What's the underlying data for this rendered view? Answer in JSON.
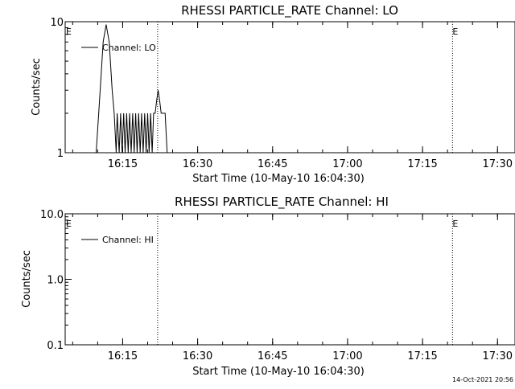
{
  "footer": {
    "timestamp": "14-Oct-2021 20:56"
  },
  "chart_data": [
    {
      "type": "line",
      "title": "RHESSI PARTICLE_RATE Channel: LO",
      "xlabel": "Start Time (10-May-10 16:04:30)",
      "ylabel": "Counts/sec",
      "yscale": "log",
      "ylim": [
        1,
        10
      ],
      "y_ticks": [
        1,
        10
      ],
      "y_tick_labels": [
        "1",
        "10"
      ],
      "xlim_min": [
        -1,
        89
      ],
      "x_ticks_min": [
        10.5,
        25.5,
        40.5,
        55.5,
        70.5,
        85.5
      ],
      "x_tick_labels": [
        "16:15",
        "16:30",
        "16:45",
        "17:00",
        "17:15",
        "17:30"
      ],
      "legend": {
        "position": "top-left",
        "label": "Channel: LO"
      },
      "events": [
        {
          "label": "E",
          "x_min": -1
        },
        {
          "label": "E",
          "x_min": 76.5
        }
      ],
      "dotted_lines_min": [
        17.5,
        76.5,
        94.5
      ],
      "series": [
        {
          "x_min": [
            4.5,
            5.2,
            6.0,
            6.6,
            7.2,
            7.8,
            8.4,
            8.8,
            9.2,
            9.4,
            9.8,
            10.1,
            10.4,
            10.7,
            11.0,
            11.3,
            11.6,
            11.9,
            12.2,
            12.5,
            12.8,
            13.1,
            13.4,
            13.7,
            14.0,
            14.3,
            14.6,
            14.9,
            15.2,
            15.5,
            15.8,
            16.1,
            16.4,
            16.7,
            17.0,
            17.3,
            17.6,
            17.9,
            18.2,
            18.6,
            19.0,
            19.4,
            19.8,
            20.6,
            25.5
          ],
          "values": [
            0.9,
            1.0,
            3.0,
            7.0,
            9.5,
            7.0,
            3.0,
            2.0,
            1.0,
            2.0,
            1.0,
            2.0,
            1.0,
            2.0,
            1.0,
            2.0,
            1.0,
            2.0,
            1.0,
            2.0,
            1.0,
            2.0,
            1.0,
            2.0,
            1.0,
            2.0,
            1.0,
            2.0,
            1.0,
            2.0,
            1.0,
            2.0,
            1.0,
            2.0,
            2.0,
            2.5,
            3.0,
            2.5,
            2.0,
            2.0,
            2.0,
            1.0,
            0.9,
            0.9,
            0.9
          ]
        }
      ]
    },
    {
      "type": "line",
      "title": "RHESSI PARTICLE_RATE Channel: HI",
      "xlabel": "Start Time (10-May-10 16:04:30)",
      "ylabel": "Counts/sec",
      "yscale": "log",
      "ylim": [
        0.1,
        10
      ],
      "y_ticks": [
        0.1,
        1,
        10
      ],
      "y_tick_labels": [
        "0.1",
        "1.0",
        "10.0"
      ],
      "xlim_min": [
        -1,
        89
      ],
      "x_ticks_min": [
        10.5,
        25.5,
        40.5,
        55.5,
        70.5,
        85.5
      ],
      "x_tick_labels": [
        "16:15",
        "16:30",
        "16:45",
        "17:00",
        "17:15",
        "17:30"
      ],
      "legend": {
        "position": "top-left",
        "label": "Channel: HI"
      },
      "events": [
        {
          "label": "E",
          "x_min": -1
        },
        {
          "label": "E",
          "x_min": 76.5
        }
      ],
      "dotted_lines_min": [
        17.5,
        76.5,
        94.5
      ],
      "series": []
    }
  ]
}
